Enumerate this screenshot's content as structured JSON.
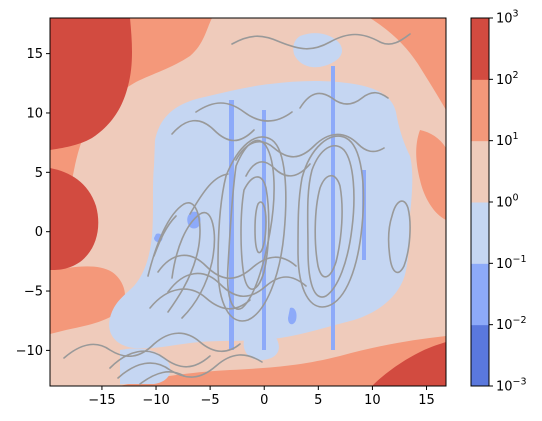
{
  "chart_data": {
    "type": "heatmap",
    "title": "",
    "xlabel": "",
    "ylabel": "",
    "xlim": [
      -19.8,
      16.8
    ],
    "ylim": [
      -13,
      18
    ],
    "x_ticks": [
      {
        "value": -15,
        "label": "−15"
      },
      {
        "value": -10,
        "label": "−10"
      },
      {
        "value": -5,
        "label": "−5"
      },
      {
        "value": 0,
        "label": "0"
      },
      {
        "value": 5,
        "label": "5"
      },
      {
        "value": 10,
        "label": "10"
      },
      {
        "value": 15,
        "label": "15"
      }
    ],
    "y_ticks": [
      {
        "value": -10,
        "label": "−10"
      },
      {
        "value": -5,
        "label": "−5"
      },
      {
        "value": 0,
        "label": "0"
      },
      {
        "value": 5,
        "label": "5"
      },
      {
        "value": 10,
        "label": "10"
      },
      {
        "value": 15,
        "label": "15"
      }
    ],
    "colorbar": {
      "scale": "log",
      "levels": [
        -3,
        -2,
        -1,
        0,
        1,
        2,
        3
      ],
      "tick_labels": [
        "10",
        "10",
        "10",
        "10",
        "10",
        "10",
        "10"
      ],
      "tick_exponents": [
        "−3",
        "−2",
        "−1",
        "0",
        "1",
        "2",
        "3"
      ],
      "band_colors": [
        "#5a78dd",
        "#8daaf9",
        "#c5d6f2",
        "#efcbbb",
        "#f4987a",
        "#d24b40"
      ]
    },
    "contour_bands": [
      {
        "level": "10^2 to 10^3",
        "color": "#d24b40"
      },
      {
        "level": "10^1 to 10^2",
        "color": "#f4987a"
      },
      {
        "level": "10^0 to 10^1",
        "color": "#efcbbb"
      },
      {
        "level": "10^-1 to 10^0",
        "color": "#c5d6f2"
      },
      {
        "level": "10^-2 to 10^-1",
        "color": "#8daaf9"
      }
    ],
    "streamline_color": "#999999",
    "grid": false
  }
}
